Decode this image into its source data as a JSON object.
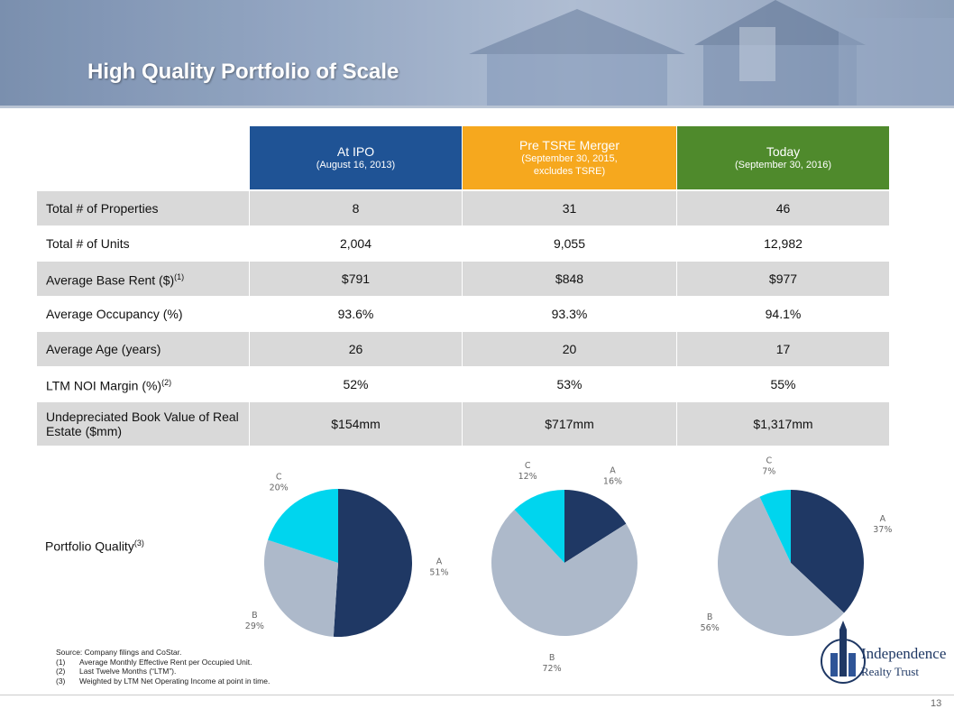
{
  "header": {
    "title": "High Quality Portfolio of Scale"
  },
  "table": {
    "columns": [
      {
        "title": "At IPO",
        "subtitle": "(August 16, 2013)",
        "color": "#1f5395"
      },
      {
        "title": "Pre TSRE Merger",
        "subtitle": "(September 30, 2015, excludes TSRE)",
        "color": "#f6a81e"
      },
      {
        "title": "Today",
        "subtitle": "(September 30, 2016)",
        "color": "#4f8a2c"
      }
    ],
    "rows": [
      {
        "label": "Total # of Properties",
        "values": [
          "8",
          "31",
          "46"
        ]
      },
      {
        "label": "Total # of Units",
        "values": [
          "2,004",
          "9,055",
          "12,982"
        ]
      },
      {
        "label": "Average Base Rent ($)",
        "note": "(1)",
        "values": [
          "$791",
          "$848",
          "$977"
        ]
      },
      {
        "label": "Average Occupancy (%)",
        "values": [
          "93.6%",
          "93.3%",
          "94.1%"
        ]
      },
      {
        "label": "Average Age (years)",
        "values": [
          "26",
          "20",
          "17"
        ]
      },
      {
        "label": "LTM NOI Margin (%)",
        "note": "(2)",
        "values": [
          "52%",
          "53%",
          "55%"
        ]
      },
      {
        "label": "Undepreciated Book Value of Real Estate ($mm)",
        "values": [
          "$154mm",
          "$717mm",
          "$1,317mm"
        ]
      }
    ]
  },
  "portfolio_label": {
    "text": "Portfolio Quality",
    "note": "(3)"
  },
  "chart_data": [
    {
      "type": "pie",
      "categories": [
        "A",
        "B",
        "C"
      ],
      "values": [
        51,
        29,
        20
      ],
      "value_labels": [
        "51%",
        "29%",
        "20%"
      ],
      "colors": [
        "#1f3864",
        "#adb9ca",
        "#00d5ee"
      ]
    },
    {
      "type": "pie",
      "categories": [
        "A",
        "B",
        "C"
      ],
      "values": [
        16,
        72,
        12
      ],
      "value_labels": [
        "16%",
        "72%",
        "12%"
      ],
      "colors": [
        "#1f3864",
        "#adb9ca",
        "#00d5ee"
      ]
    },
    {
      "type": "pie",
      "categories": [
        "A",
        "B",
        "C"
      ],
      "values": [
        37,
        56,
        7
      ],
      "value_labels": [
        "37%",
        "56%",
        "7%"
      ],
      "colors": [
        "#1f3864",
        "#adb9ca",
        "#00d5ee"
      ]
    }
  ],
  "footer": {
    "source": "Source: Company filings and CoStar.",
    "notes": [
      {
        "number": "(1)",
        "text": "Average Monthly Effective Rent per Occupied Unit."
      },
      {
        "number": "(2)",
        "text": "Last Twelve Months (“LTM”)."
      },
      {
        "number": "(3)",
        "text": "Weighted by LTM Net Operating Income at point in time."
      }
    ],
    "logo": {
      "line1": "Independence",
      "line2": "Realty Trust"
    },
    "page_number": "13"
  }
}
